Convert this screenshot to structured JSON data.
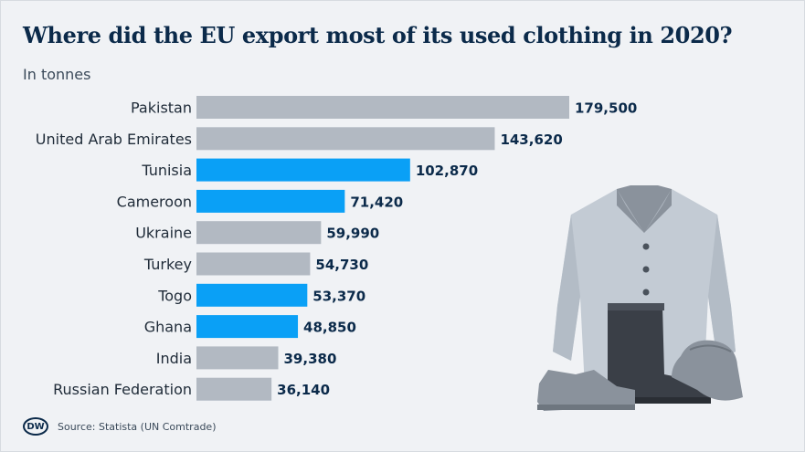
{
  "title": "Where did the EU export most of its used clothing in 2020?",
  "subtitle": "In tonnes",
  "source": "Source: Statista (UN Comtrade)",
  "logo_text": "DW",
  "colors": {
    "highlight": "#0aa0f6",
    "default": "#b2b9c2"
  },
  "chart_data": {
    "type": "bar",
    "orientation": "horizontal",
    "title": "Where did the EU export most of its used clothing in 2020?",
    "subtitle": "In tonnes",
    "categories": [
      "Pakistan",
      "United Arab Emirates",
      "Tunisia",
      "Cameroon",
      "Ukraine",
      "Turkey",
      "Togo",
      "Ghana",
      "India",
      "Russian Federation"
    ],
    "values": [
      179500,
      143620,
      102870,
      71420,
      59990,
      54730,
      53370,
      48850,
      39380,
      36140
    ],
    "labels": [
      "179,500",
      "143,620",
      "102,870",
      "71,420",
      "59,990",
      "54,730",
      "53,370",
      "48,850",
      "39,380",
      "36,140"
    ],
    "highlighted": [
      false,
      false,
      true,
      true,
      false,
      false,
      true,
      true,
      false,
      false
    ],
    "xlim": [
      0,
      179500
    ],
    "grid": false,
    "legend": "none"
  }
}
